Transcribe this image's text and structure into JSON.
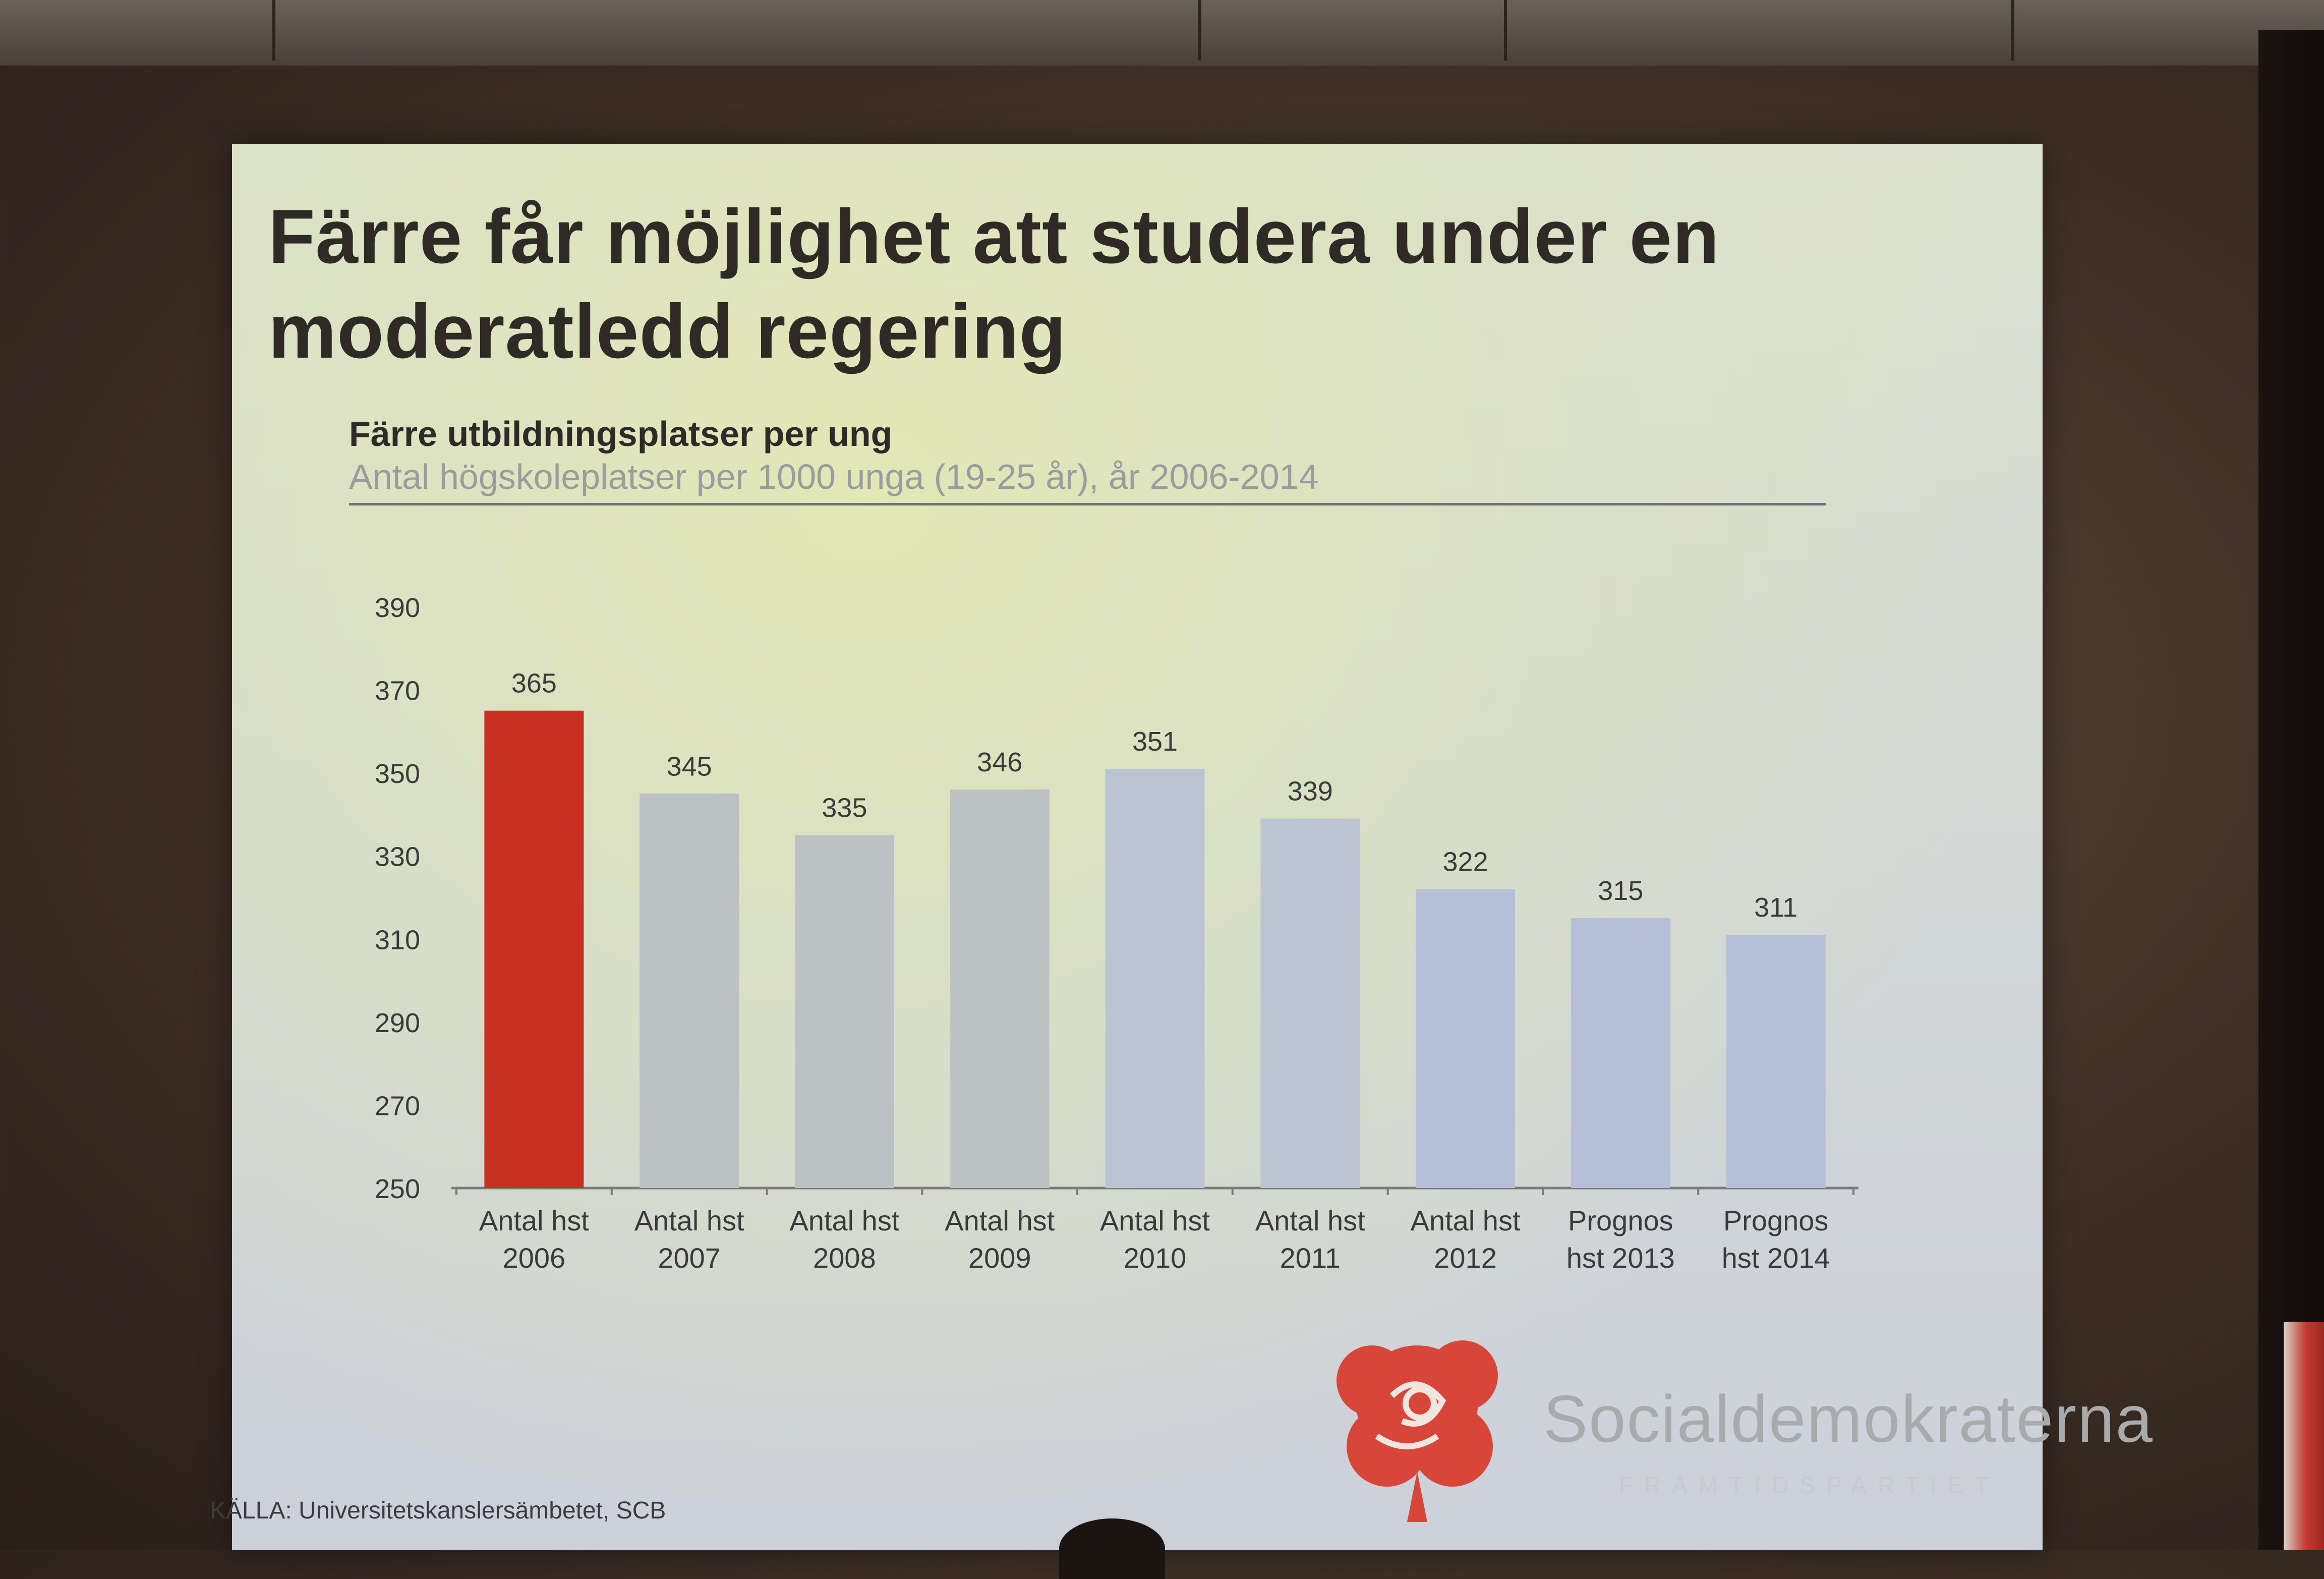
{
  "slide": {
    "title": "Färre får möjlighet att studera under en moderatledd regering",
    "source": "KÄLLA: Universitetskanslersämbetet, SCB"
  },
  "logo": {
    "name": "Socialdemokraterna",
    "tagline": "FRAMTIDSPARTIET"
  },
  "colors": {
    "highlight_bar": "#c8301f",
    "bars": [
      "#c8301f",
      "#bcc2c4",
      "#bcc2c4",
      "#bcc2c4",
      "#bac4d2",
      "#bac4d2",
      "#b6bfd8",
      "#b6bfd8",
      "#b6bfd8"
    ],
    "logo_red": "#d8463a"
  },
  "chart_data": {
    "type": "bar",
    "title": "Färre utbildningsplatser  per ung",
    "subtitle": "Antal högskoleplatser  per 1000 unga (19-25 år), år 2006-2014",
    "categories": [
      [
        "Antal hst",
        "2006"
      ],
      [
        "Antal hst",
        "2007"
      ],
      [
        "Antal hst",
        "2008"
      ],
      [
        "Antal hst",
        "2009"
      ],
      [
        "Antal hst",
        "2010"
      ],
      [
        "Antal hst",
        "2011"
      ],
      [
        "Antal hst",
        "2012"
      ],
      [
        "Prognos",
        "hst 2013"
      ],
      [
        "Prognos",
        "hst 2014"
      ]
    ],
    "values": [
      365,
      345,
      335,
      346,
      351,
      339,
      322,
      315,
      311
    ],
    "ylim": [
      250,
      390
    ],
    "yticks": [
      250,
      270,
      290,
      310,
      330,
      350,
      370,
      390
    ],
    "grid": false,
    "legend": false
  }
}
